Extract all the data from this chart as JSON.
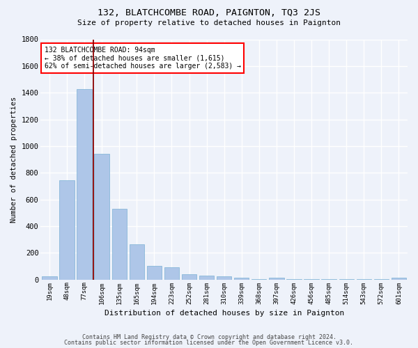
{
  "title": "132, BLATCHCOMBE ROAD, PAIGNTON, TQ3 2JS",
  "subtitle": "Size of property relative to detached houses in Paignton",
  "xlabel": "Distribution of detached houses by size in Paignton",
  "ylabel": "Number of detached properties",
  "categories": [
    "19sqm",
    "48sqm",
    "77sqm",
    "106sqm",
    "135sqm",
    "165sqm",
    "194sqm",
    "223sqm",
    "252sqm",
    "281sqm",
    "310sqm",
    "339sqm",
    "368sqm",
    "397sqm",
    "426sqm",
    "456sqm",
    "485sqm",
    "514sqm",
    "543sqm",
    "572sqm",
    "601sqm"
  ],
  "values": [
    22,
    745,
    1425,
    940,
    530,
    265,
    105,
    93,
    38,
    27,
    25,
    14,
    5,
    14,
    5,
    5,
    5,
    5,
    5,
    5,
    14
  ],
  "bar_color": "#aec6e8",
  "bar_edge_color": "#7ab0d4",
  "background_color": "#eef2fa",
  "grid_color": "#ffffff",
  "redline_x": 2.5,
  "annotation_title": "132 BLATCHCOMBE ROAD: 94sqm",
  "annotation_line1": "← 38% of detached houses are smaller (1,615)",
  "annotation_line2": "62% of semi-detached houses are larger (2,583) →",
  "footnote1": "Contains HM Land Registry data © Crown copyright and database right 2024.",
  "footnote2": "Contains public sector information licensed under the Open Government Licence v3.0.",
  "ylim": [
    0,
    1800
  ],
  "yticks": [
    0,
    200,
    400,
    600,
    800,
    1000,
    1200,
    1400,
    1600,
    1800
  ]
}
